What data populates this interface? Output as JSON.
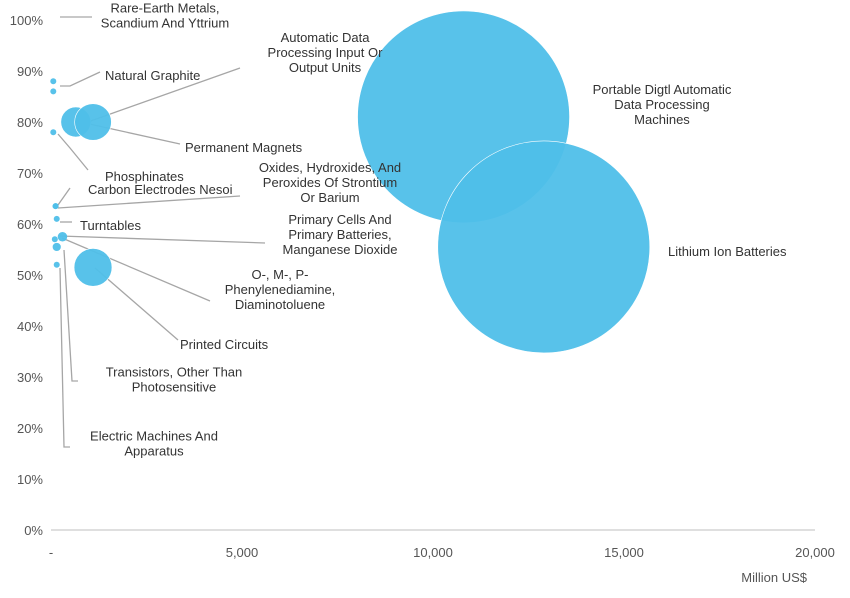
{
  "chart_data": {
    "type": "scatter",
    "variant": "bubble",
    "title": "",
    "xlabel": "Million US$",
    "ylabel": "",
    "xlim": [
      0,
      20000
    ],
    "ylim": [
      0,
      100
    ],
    "grid": false,
    "legend": "none",
    "bubble_color": "#4fbfe9",
    "leader_color": "#a6a6a6",
    "x_ticks": [
      "-",
      "5,000",
      "10,000",
      "15,000",
      "20,000"
    ],
    "y_ticks": [
      "0%",
      "10%",
      "20%",
      "30%",
      "40%",
      "50%",
      "60%",
      "70%",
      "80%",
      "90%",
      "100%"
    ],
    "points": [
      {
        "label_lines": [
          "Rare-Earth Metals,",
          "Scandium And Yttrium"
        ],
        "x": 60,
        "y": 88,
        "size": 3
      },
      {
        "label_lines": [
          "Natural Graphite"
        ],
        "x": 60,
        "y": 86,
        "size": 3
      },
      {
        "label_lines": [
          "Automatic Data",
          "Processing Input Or",
          "Output Units"
        ],
        "x": 650,
        "y": 80,
        "size": 200
      },
      {
        "label_lines": [
          "Permanent Magnets"
        ],
        "x": 1100,
        "y": 80,
        "size": 300
      },
      {
        "label_lines": [
          "Phosphinates"
        ],
        "x": 60,
        "y": 78,
        "size": 3
      },
      {
        "label_lines": [
          "Carbon Electrodes Nesoi"
        ],
        "x": 120,
        "y": 63.5,
        "size": 3
      },
      {
        "label_lines": [
          "Oxides, Hydroxides, And",
          "Peroxides Of Strontium",
          "Or Barium"
        ],
        "x": 120,
        "y": 63.5,
        "size": 3
      },
      {
        "label_lines": [
          "Turntables"
        ],
        "x": 150,
        "y": 61,
        "size": 3
      },
      {
        "label_lines": [
          "Primary Cells And",
          "Primary Batteries,",
          "Manganese Dioxide"
        ],
        "x": 300,
        "y": 57.5,
        "size": 20
      },
      {
        "label_lines": [
          "O-, M-, P-",
          "Phenylenediamine,",
          "Diaminotoluene"
        ],
        "x": 100,
        "y": 57,
        "size": 5
      },
      {
        "label_lines": [
          "Printed Circuits"
        ],
        "x": 1100,
        "y": 51.5,
        "size": 320
      },
      {
        "label_lines": [
          "Transistors, Other Than",
          "Photosensitive"
        ],
        "x": 150,
        "y": 55.5,
        "size": 15
      },
      {
        "label_lines": [
          "Electric Machines And",
          "Apparatus"
        ],
        "x": 150,
        "y": 52,
        "size": 3
      },
      {
        "label_lines": [
          "Portable Digtl Automatic",
          "Data Processing",
          "Machines"
        ],
        "x": 10800,
        "y": 81,
        "size": 10000
      },
      {
        "label_lines": [
          "Lithium Ion Batteries"
        ],
        "x": 12900,
        "y": 55.5,
        "size": 10000
      }
    ]
  }
}
